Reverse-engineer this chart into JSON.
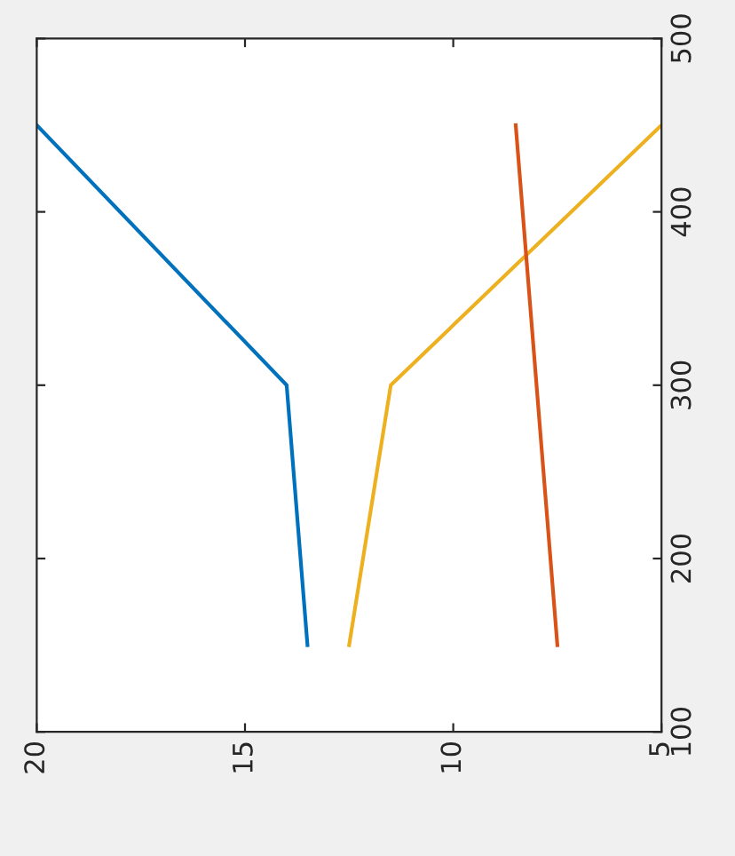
{
  "chart_data": {
    "type": "line",
    "xlim": [
      20,
      5
    ],
    "xticks": [
      20,
      15,
      10,
      5
    ],
    "ylim": [
      100,
      500
    ],
    "yticks": [
      100,
      200,
      300,
      400,
      500
    ],
    "grid": false,
    "legend": false,
    "series": [
      {
        "color": "#0072bd",
        "x": [
          20,
          14,
          13.5
        ],
        "values": [
          450,
          300,
          150
        ]
      },
      {
        "color": "#edb120",
        "x": [
          12.5,
          11.5,
          5
        ],
        "values": [
          150,
          300,
          450
        ]
      },
      {
        "color": "#d95319",
        "x": [
          7.5,
          8.5
        ],
        "values": [
          150,
          450
        ]
      }
    ]
  }
}
